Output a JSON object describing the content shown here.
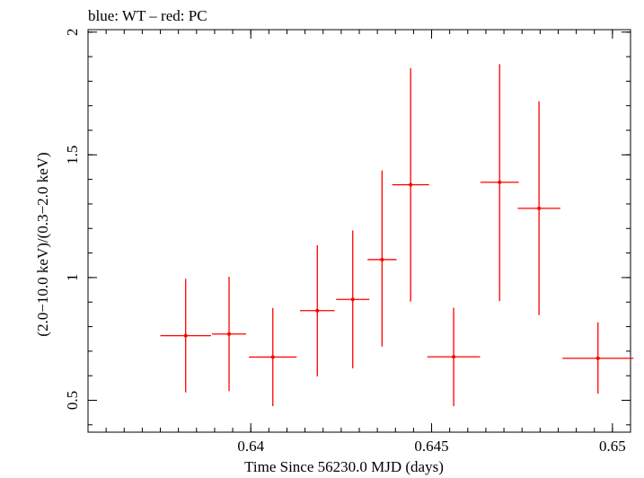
{
  "chart_data": {
    "type": "scatter",
    "title": "blue: WT – red: PC",
    "xlabel": "Time Since 56230.0 MJD (days)",
    "ylabel": "(2.0−10.0 keV)/(0.3−2.0 keV)",
    "xlim": [
      0.6355,
      0.6505
    ],
    "ylim": [
      0.37,
      2.01
    ],
    "x_ticks": [
      {
        "value": 0.64,
        "label": "0.64"
      },
      {
        "value": 0.645,
        "label": "0.645"
      },
      {
        "value": 0.65,
        "label": "0.65"
      }
    ],
    "y_ticks": [
      {
        "value": 0.5,
        "label": "0.5"
      },
      {
        "value": 1.0,
        "label": "1"
      },
      {
        "value": 1.5,
        "label": "1.5"
      },
      {
        "value": 2.0,
        "label": "2"
      }
    ],
    "x_minor_step": 0.0005,
    "y_minor_step": 0.1,
    "series": [
      {
        "name": "PC",
        "color": "#ff0000",
        "points": [
          {
            "x": 0.6382,
            "xerr": 0.0007,
            "y": 0.763,
            "ylo": 0.532,
            "yhi": 0.995
          },
          {
            "x": 0.6394,
            "xerr": 0.00047,
            "y": 0.77,
            "ylo": 0.537,
            "yhi": 1.003
          },
          {
            "x": 0.64061,
            "xerr": 0.00066,
            "y": 0.676,
            "ylo": 0.476,
            "yhi": 0.876
          },
          {
            "x": 0.64184,
            "xerr": 0.00048,
            "y": 0.865,
            "ylo": 0.597,
            "yhi": 1.132
          },
          {
            "x": 0.64282,
            "xerr": 0.00046,
            "y": 0.911,
            "ylo": 0.63,
            "yhi": 1.192
          },
          {
            "x": 0.64363,
            "xerr": 0.0004,
            "y": 1.073,
            "ylo": 0.719,
            "yhi": 1.436
          },
          {
            "x": 0.64442,
            "xerr": 0.00051,
            "y": 1.378,
            "ylo": 0.902,
            "yhi": 1.853
          },
          {
            "x": 0.64561,
            "xerr": 0.00073,
            "y": 0.677,
            "ylo": 0.476,
            "yhi": 0.877
          },
          {
            "x": 0.64688,
            "xerr": 0.00053,
            "y": 1.388,
            "ylo": 0.904,
            "yhi": 1.869
          },
          {
            "x": 0.64797,
            "xerr": 0.00059,
            "y": 1.282,
            "ylo": 0.847,
            "yhi": 1.718
          },
          {
            "x": 0.6496,
            "xerr": 0.00098,
            "y": 0.671,
            "ylo": 0.527,
            "yhi": 0.817
          }
        ]
      }
    ]
  }
}
